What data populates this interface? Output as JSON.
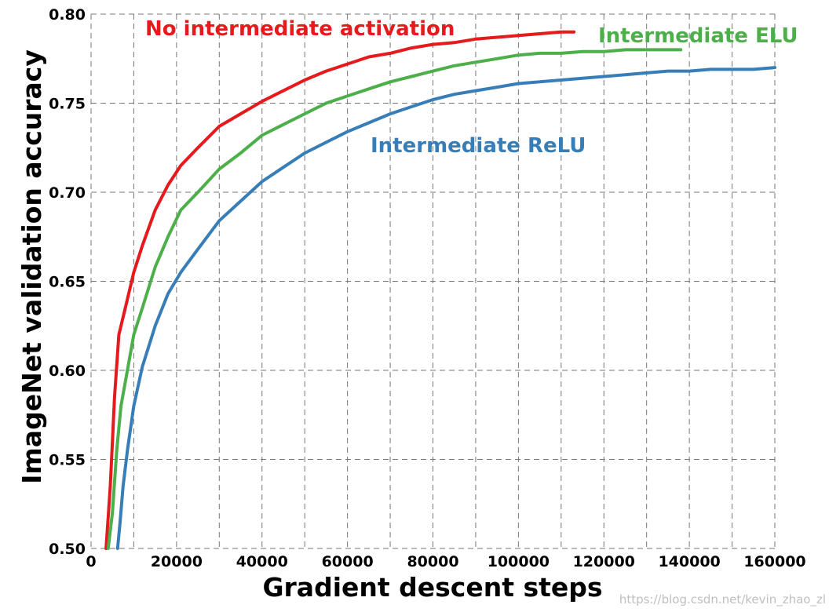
{
  "chart_data": {
    "type": "line",
    "xlabel": "Gradient descent steps",
    "ylabel": "ImageNet validation accuracy",
    "xlim": [
      0,
      160000
    ],
    "ylim": [
      0.5,
      0.8
    ],
    "xticks": [
      0,
      20000,
      40000,
      60000,
      80000,
      100000,
      120000,
      140000,
      160000
    ],
    "yticks": [
      0.5,
      0.55,
      0.6,
      0.65,
      0.7,
      0.75,
      0.8
    ],
    "xtick_labels": [
      "0",
      "20000",
      "40000",
      "60000",
      "80000",
      "100000",
      "120000",
      "140000",
      "160000"
    ],
    "ytick_labels": [
      "0.50",
      "0.55",
      "0.60",
      "0.65",
      "0.70",
      "0.75",
      "0.80"
    ],
    "grid": true,
    "series": [
      {
        "name": "No intermediate activation",
        "color": "#e41a1c",
        "x": [
          3500,
          4500,
          5500,
          6500,
          8000,
          10000,
          12000,
          15000,
          18000,
          21000,
          25000,
          30000,
          35000,
          40000,
          45000,
          50000,
          55000,
          60000,
          65000,
          70000,
          75000,
          80000,
          85000,
          90000,
          95000,
          100000,
          105000,
          110000,
          113000
        ],
        "y": [
          0.5,
          0.535,
          0.585,
          0.62,
          0.635,
          0.655,
          0.67,
          0.69,
          0.704,
          0.715,
          0.725,
          0.737,
          0.744,
          0.751,
          0.757,
          0.763,
          0.768,
          0.772,
          0.776,
          0.778,
          0.781,
          0.783,
          0.784,
          0.786,
          0.787,
          0.788,
          0.789,
          0.79,
          0.79
        ]
      },
      {
        "name": "Intermediate ELU",
        "color": "#4daf4a",
        "x": [
          4000,
          5000,
          6000,
          7000,
          8500,
          10000,
          12000,
          15000,
          18000,
          21000,
          25000,
          30000,
          35000,
          40000,
          45000,
          50000,
          55000,
          60000,
          65000,
          70000,
          75000,
          80000,
          85000,
          90000,
          95000,
          100000,
          105000,
          110000,
          115000,
          120000,
          125000,
          130000,
          135000,
          138000
        ],
        "y": [
          0.5,
          0.52,
          0.555,
          0.58,
          0.6,
          0.62,
          0.635,
          0.658,
          0.675,
          0.69,
          0.7,
          0.713,
          0.722,
          0.732,
          0.738,
          0.744,
          0.75,
          0.754,
          0.758,
          0.762,
          0.765,
          0.768,
          0.771,
          0.773,
          0.775,
          0.777,
          0.778,
          0.778,
          0.779,
          0.779,
          0.78,
          0.78,
          0.78,
          0.78
        ]
      },
      {
        "name": "Intermediate ReLU",
        "color": "#377eb8",
        "x": [
          6200,
          6800,
          7500,
          8500,
          10000,
          12000,
          15000,
          18000,
          21000,
          25000,
          30000,
          35000,
          40000,
          45000,
          50000,
          55000,
          60000,
          65000,
          70000,
          75000,
          80000,
          85000,
          90000,
          95000,
          100000,
          105000,
          110000,
          115000,
          120000,
          125000,
          130000,
          135000,
          140000,
          145000,
          150000,
          155000,
          160000
        ],
        "y": [
          0.5,
          0.515,
          0.535,
          0.555,
          0.58,
          0.602,
          0.625,
          0.643,
          0.655,
          0.668,
          0.684,
          0.695,
          0.706,
          0.714,
          0.722,
          0.728,
          0.734,
          0.739,
          0.744,
          0.748,
          0.752,
          0.755,
          0.757,
          0.759,
          0.761,
          0.762,
          0.763,
          0.764,
          0.765,
          0.766,
          0.767,
          0.768,
          0.768,
          0.769,
          0.769,
          0.769,
          0.77
        ]
      }
    ],
    "annotations": [
      {
        "text": "No intermediate activation",
        "color": "#e41a1c"
      },
      {
        "text": "Intermediate ELU",
        "color": "#4daf4a"
      },
      {
        "text": "Intermediate ReLU",
        "color": "#377eb8"
      }
    ]
  },
  "watermark": "https://blog.csdn.net/kevin_zhao_zl"
}
